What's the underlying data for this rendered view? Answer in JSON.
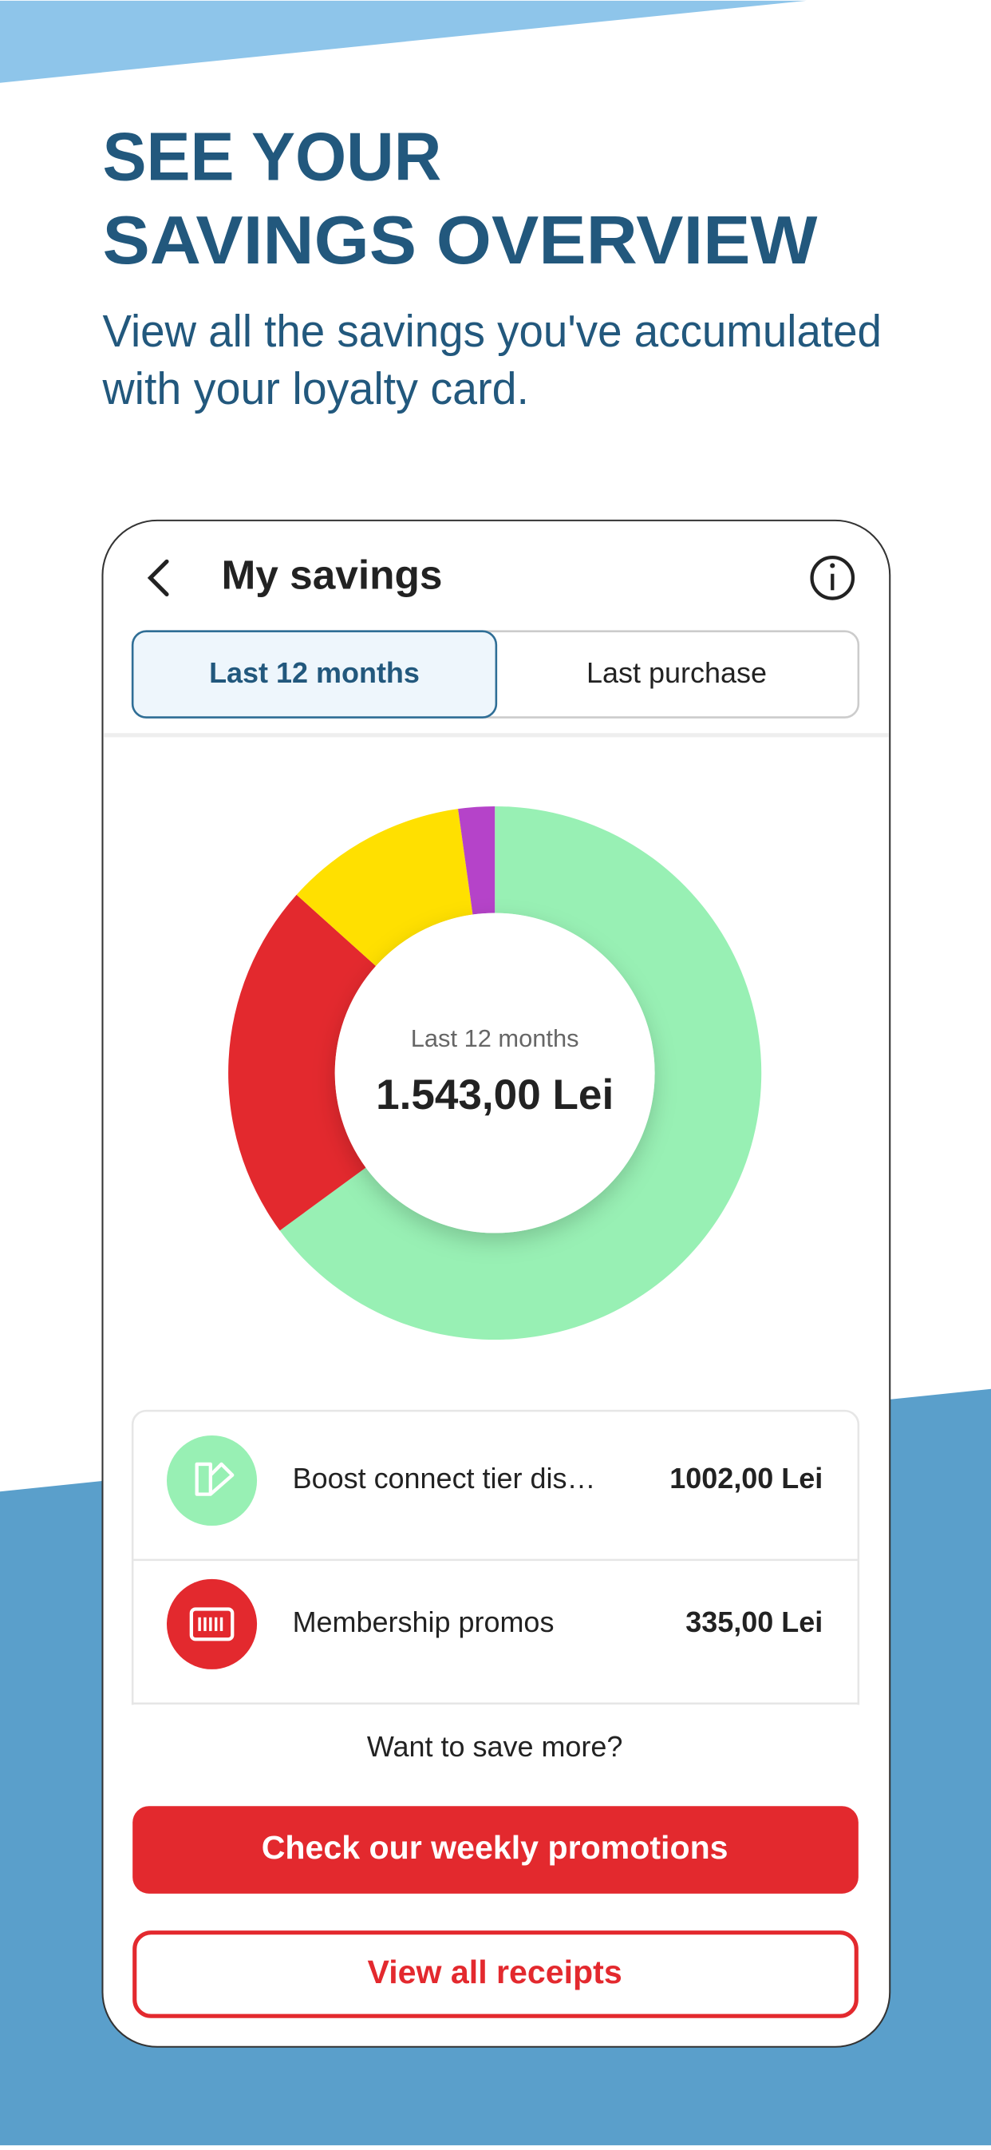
{
  "header": {
    "title": [
      "SEE YOUR",
      "SAVINGS OVERVIEW"
    ],
    "subtitle": [
      "View all the savings you've accumulated",
      "with your loyalty card."
    ]
  },
  "screen": {
    "title": "My savings",
    "tabs": [
      "Last 12 months",
      "Last purchase"
    ],
    "prompt": "Want to save more?",
    "buttons": [
      "Check our weekly promotions",
      "View all receipts"
    ]
  },
  "chart_data": {
    "type": "donut",
    "center_label": "Last 12 months",
    "total_label": "1.543,00 Lei",
    "categories": [
      "Boost connect tier dis…",
      "Membership promos",
      null,
      null
    ],
    "values": [
      1002,
      335,
      172,
      34
    ],
    "value_labels": [
      "1002,00 Lei",
      "335,00 Lei",
      null,
      null
    ],
    "colors": [
      "#98f0b4",
      "#e3292e",
      "#ffe000",
      "#b543c9"
    ]
  }
}
